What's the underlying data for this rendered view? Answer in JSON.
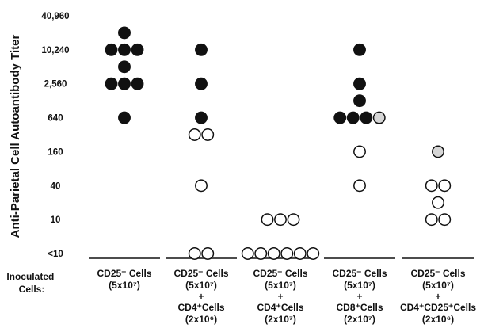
{
  "chart_data": {
    "type": "scatter",
    "title": "",
    "ylabel": "Anti-Parietal Cell Autoantibody Titer",
    "xlabel": "",
    "y_scale": "log2",
    "y_ticks": [
      "40,960",
      "10,240",
      "2,560",
      "640",
      "160",
      "40",
      "10",
      "<10"
    ],
    "y_tick_values": [
      40960,
      10240,
      2560,
      640,
      160,
      40,
      10,
      2.5
    ],
    "row_label": "Inoculated Cells:",
    "legend": {
      "filled": "black circle",
      "open": "white circle",
      "dotted": "gray stippled circle"
    },
    "groups": [
      {
        "label_lines": [
          "CD25⁻ Cells",
          "(5x10⁷)"
        ],
        "points": [
          {
            "y": 20480,
            "style": "filled"
          },
          {
            "y": 10240,
            "style": "filled"
          },
          {
            "y": 10240,
            "style": "filled"
          },
          {
            "y": 10240,
            "style": "filled"
          },
          {
            "y": 5120,
            "style": "filled"
          },
          {
            "y": 2560,
            "style": "filled"
          },
          {
            "y": 2560,
            "style": "filled"
          },
          {
            "y": 2560,
            "style": "filled"
          },
          {
            "y": 640,
            "style": "filled"
          }
        ]
      },
      {
        "label_lines": [
          "CD25⁻ Cells",
          "(5x10⁷)",
          "+",
          "CD4⁺Cells",
          "(2x10⁶)"
        ],
        "points": [
          {
            "y": 10240,
            "style": "filled"
          },
          {
            "y": 2560,
            "style": "filled"
          },
          {
            "y": 640,
            "style": "filled"
          },
          {
            "y": 320,
            "style": "open"
          },
          {
            "y": 320,
            "style": "open"
          },
          {
            "y": 40,
            "style": "open"
          },
          {
            "y": 2.5,
            "style": "open"
          },
          {
            "y": 2.5,
            "style": "open"
          }
        ]
      },
      {
        "label_lines": [
          "CD25⁻ Cells",
          "(5x10⁷)",
          "+",
          "CD4⁺Cells",
          "(2x10⁷)"
        ],
        "points": [
          {
            "y": 10,
            "style": "open"
          },
          {
            "y": 10,
            "style": "open"
          },
          {
            "y": 10,
            "style": "open"
          },
          {
            "y": 2.5,
            "style": "open"
          },
          {
            "y": 2.5,
            "style": "open"
          },
          {
            "y": 2.5,
            "style": "open"
          },
          {
            "y": 2.5,
            "style": "open"
          },
          {
            "y": 2.5,
            "style": "open"
          },
          {
            "y": 2.5,
            "style": "open"
          }
        ]
      },
      {
        "label_lines": [
          "CD25⁻ Cells",
          "(5x10⁷)",
          "+",
          "CD8⁺Cells",
          "(2x10⁷)"
        ],
        "points": [
          {
            "y": 10240,
            "style": "filled"
          },
          {
            "y": 2560,
            "style": "filled"
          },
          {
            "y": 1280,
            "style": "filled"
          },
          {
            "y": 640,
            "style": "filled"
          },
          {
            "y": 640,
            "style": "filled"
          },
          {
            "y": 640,
            "style": "filled"
          },
          {
            "y": 640,
            "style": "dotted"
          },
          {
            "y": 160,
            "style": "open"
          },
          {
            "y": 40,
            "style": "open"
          }
        ]
      },
      {
        "label_lines": [
          "CD25⁻ Cells",
          "(5x10⁷)",
          "+",
          "CD4⁺CD25⁺Cells",
          "(2x10⁶)"
        ],
        "points": [
          {
            "y": 160,
            "style": "dotted"
          },
          {
            "y": 40,
            "style": "open"
          },
          {
            "y": 40,
            "style": "open"
          },
          {
            "y": 20,
            "style": "open"
          },
          {
            "y": 10,
            "style": "open"
          },
          {
            "y": 10,
            "style": "open"
          }
        ]
      }
    ]
  }
}
